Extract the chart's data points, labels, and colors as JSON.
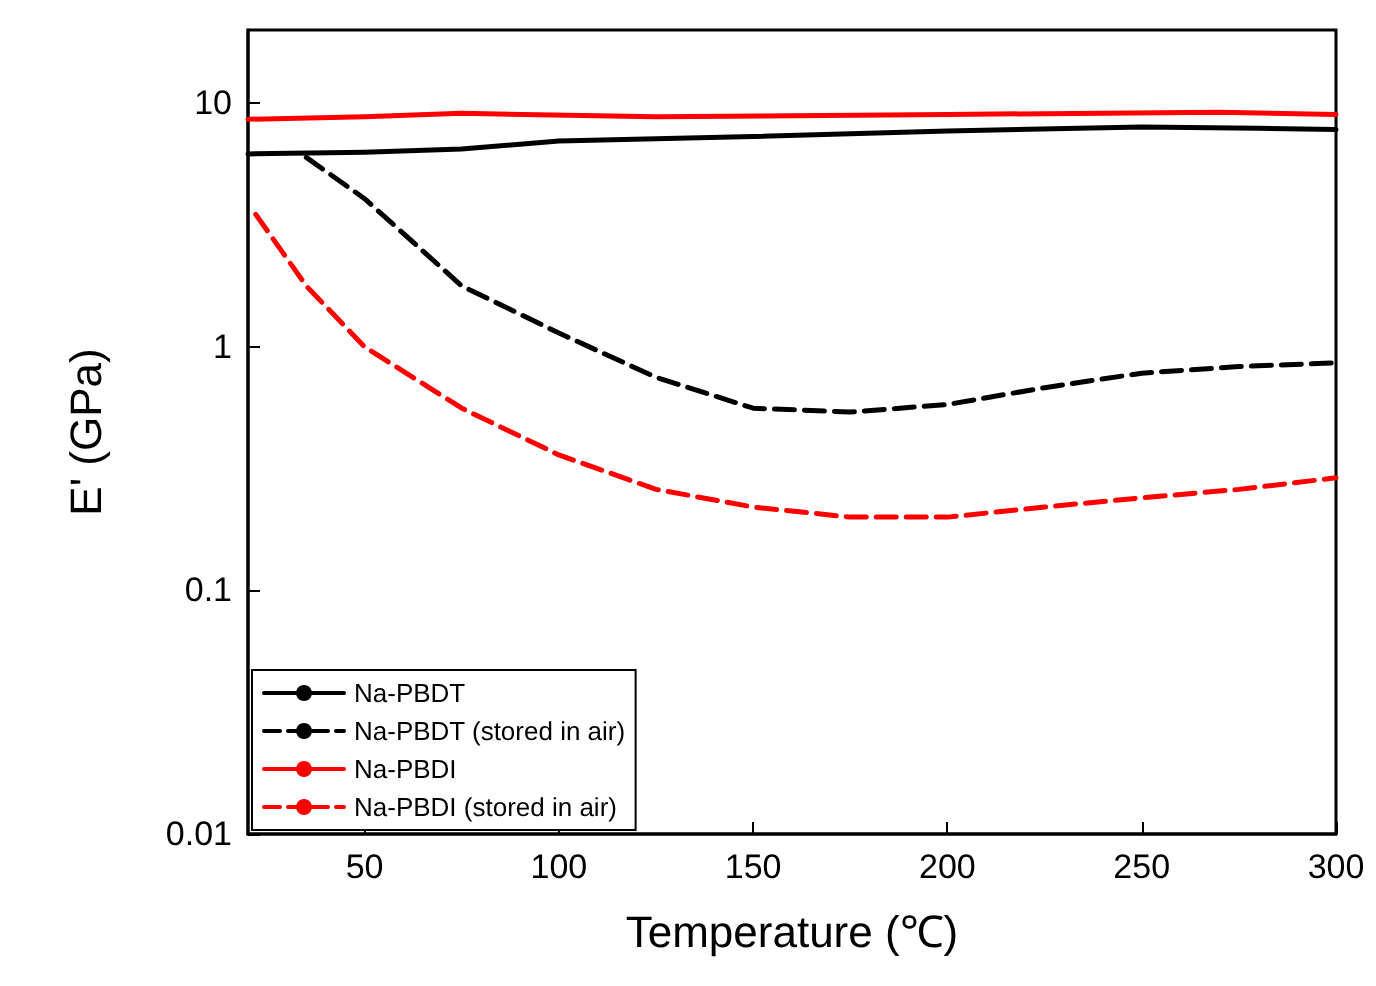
{
  "chart_data": {
    "type": "line",
    "xlabel": "Temperature (℃)",
    "ylabel": "E' (GPa)",
    "log": "y",
    "xlim": [
      20,
      300
    ],
    "xticks": [
      50,
      100,
      150,
      200,
      250,
      300
    ],
    "ylim": [
      0.01,
      20
    ],
    "yticks": [
      0.01,
      0.1,
      1,
      10
    ],
    "grid": false,
    "legend": "bottom left",
    "marker": "none",
    "series": [
      {
        "name": "Na-PBDT",
        "color": "#000000",
        "line_style": "solid",
        "x": [
          20,
          50,
          75,
          100,
          150,
          200,
          250,
          280,
          300
        ],
        "values": [
          6.2,
          6.3,
          6.5,
          7,
          7.3,
          7.7,
          8,
          7.9,
          7.8
        ]
      },
      {
        "name": "Na-PBDT (stored in air)",
        "color": "#000000",
        "line_style": "dashed",
        "x": [
          35,
          50,
          75,
          100,
          125,
          150,
          175,
          200,
          225,
          250,
          275,
          300
        ],
        "values": [
          6,
          4.06,
          1.78,
          1.14,
          0.75,
          0.56,
          0.54,
          0.58,
          0.68,
          0.78,
          0.83,
          0.86
        ]
      },
      {
        "name": "Na-PBDI",
        "color": "#ff0000",
        "line_style": "solid",
        "x": [
          20,
          50,
          75,
          125,
          200,
          270,
          300
        ],
        "values": [
          8.6,
          8.8,
          9.1,
          8.8,
          9,
          9.2,
          9
        ]
      },
      {
        "name": "Na-PBDI (stored in air)",
        "color": "#ff0000",
        "line_style": "dashed",
        "x": [
          22,
          35,
          50,
          75,
          100,
          125,
          150,
          175,
          200,
          225,
          250,
          275,
          300
        ],
        "values": [
          3.5,
          1.78,
          1,
          0.56,
          0.36,
          0.26,
          0.22,
          0.2,
          0.2,
          0.22,
          0.24,
          0.26,
          0.29
        ]
      }
    ]
  }
}
